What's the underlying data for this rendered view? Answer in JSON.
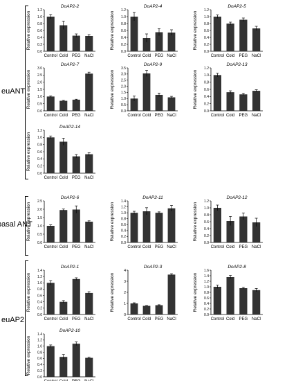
{
  "groups": [
    {
      "label": "euANT"
    },
    {
      "label": "basal ANT"
    },
    {
      "label": "euAP2"
    }
  ],
  "chart_data": [
    {
      "type": "bar",
      "title": "DoAP2-2",
      "ylabel": "Relative expression",
      "categories": [
        "Control",
        "Cold",
        "PEG",
        "NaCl"
      ],
      "values": [
        1.0,
        0.75,
        0.45,
        0.44
      ],
      "errors": [
        0.06,
        0.12,
        0.05,
        0.04
      ],
      "ylim": [
        0,
        1.2
      ],
      "yticks": [
        "0.0",
        "0.2",
        "0.4",
        "0.6",
        "0.8",
        "1.0",
        "1.2"
      ]
    },
    {
      "type": "bar",
      "title": "DoAP2-4",
      "ylabel": "Relative expression",
      "categories": [
        "Control",
        "Cold",
        "PEG",
        "NaCl"
      ],
      "values": [
        1.0,
        0.38,
        0.55,
        0.54
      ],
      "errors": [
        0.12,
        0.12,
        0.1,
        0.08
      ],
      "ylim": [
        0,
        1.2
      ],
      "yticks": [
        "0.0",
        "0.2",
        "0.4",
        "0.6",
        "0.8",
        "1.0",
        "1.2"
      ]
    },
    {
      "type": "bar",
      "title": "DoAP2-5",
      "ylabel": "Relative expression",
      "categories": [
        "Control",
        "Cold",
        "PEG",
        "NaCl"
      ],
      "values": [
        1.0,
        0.8,
        0.91,
        0.66
      ],
      "errors": [
        0.05,
        0.04,
        0.05,
        0.06
      ],
      "ylim": [
        0,
        1.2
      ],
      "yticks": [
        "0.0",
        "0.2",
        "0.4",
        "0.6",
        "0.8",
        "1.0",
        "1.2"
      ]
    },
    {
      "type": "bar",
      "title": "DoAP2-7",
      "ylabel": "Relative expression",
      "categories": [
        "Control",
        "Cold",
        "PEG",
        "NaCl"
      ],
      "values": [
        1.0,
        0.7,
        0.78,
        2.6
      ],
      "errors": [
        0.04,
        0.03,
        0.03,
        0.1
      ],
      "ylim": [
        0,
        3.0
      ],
      "yticks": [
        "0.0",
        "0.5",
        "1.0",
        "1.5",
        "2.0",
        "2.5",
        "3.0"
      ]
    },
    {
      "type": "bar",
      "title": "DoAP2-9",
      "ylabel": "Relative expression",
      "categories": [
        "Control",
        "Cold",
        "PEG",
        "NaCl"
      ],
      "values": [
        1.0,
        3.05,
        1.3,
        1.1
      ],
      "errors": [
        0.2,
        0.25,
        0.15,
        0.08
      ],
      "ylim": [
        0,
        3.5
      ],
      "yticks": [
        "0.0",
        "0.5",
        "1.0",
        "1.5",
        "2.0",
        "2.5",
        "3.0",
        "3.5"
      ]
    },
    {
      "type": "bar",
      "title": "DoAP2-13",
      "ylabel": "Relative expression",
      "categories": [
        "Control",
        "Cold",
        "PEG",
        "NaCl"
      ],
      "values": [
        1.0,
        0.52,
        0.46,
        0.56
      ],
      "errors": [
        0.05,
        0.04,
        0.03,
        0.03
      ],
      "ylim": [
        0,
        1.2
      ],
      "yticks": [
        "0.0",
        "0.2",
        "0.4",
        "0.6",
        "0.8",
        "1.0",
        "1.2"
      ]
    },
    {
      "type": "bar",
      "title": "DoAP2-14",
      "ylabel": "Relative expression",
      "categories": [
        "Control",
        "Cold",
        "PEG",
        "NaCl"
      ],
      "values": [
        1.0,
        0.88,
        0.47,
        0.53
      ],
      "errors": [
        0.04,
        0.1,
        0.05,
        0.04
      ],
      "ylim": [
        0,
        1.2
      ],
      "yticks": [
        "0.0",
        "0.2",
        "0.4",
        "0.6",
        "0.8",
        "1.0",
        "1.2"
      ]
    },
    {
      "type": "bar",
      "title": "DoAP2-6",
      "ylabel": "Relative expression",
      "categories": [
        "Control",
        "Cold",
        "PEG",
        "NaCl"
      ],
      "values": [
        1.0,
        1.95,
        1.98,
        1.25
      ],
      "errors": [
        0.06,
        0.06,
        0.22,
        0.05
      ],
      "ylim": [
        0,
        2.5
      ],
      "yticks": [
        "0.0",
        "0.5",
        "1.0",
        "1.5",
        "2.0",
        "2.5"
      ]
    },
    {
      "type": "bar",
      "title": "DoAP2-11",
      "ylabel": "Relative expression",
      "categories": [
        "Control",
        "Cold",
        "PEG",
        "NaCl"
      ],
      "values": [
        1.0,
        1.05,
        1.0,
        1.15
      ],
      "errors": [
        0.05,
        0.12,
        0.03,
        0.1
      ],
      "ylim": [
        0,
        1.4
      ],
      "yticks": [
        "0.0",
        "0.2",
        "0.4",
        "0.6",
        "0.8",
        "1.0",
        "1.2",
        "1.4"
      ]
    },
    {
      "type": "bar",
      "title": "DoAP2-12",
      "ylabel": "Relative expression",
      "categories": [
        "Control",
        "Cold",
        "PEG",
        "NaCl"
      ],
      "values": [
        1.0,
        0.62,
        0.75,
        0.58
      ],
      "errors": [
        0.08,
        0.13,
        0.1,
        0.12
      ],
      "ylim": [
        0,
        1.2
      ],
      "yticks": [
        "0.0",
        "0.2",
        "0.4",
        "0.6",
        "0.8",
        "1.0",
        "1.2"
      ]
    },
    {
      "type": "bar",
      "title": "DoAP2-1",
      "ylabel": "Relative expression",
      "categories": [
        "Control",
        "Cold",
        "PEG",
        "NaCl"
      ],
      "values": [
        1.0,
        0.4,
        1.12,
        0.68
      ],
      "errors": [
        0.07,
        0.04,
        0.04,
        0.04
      ],
      "ylim": [
        0,
        1.4
      ],
      "yticks": [
        "0.0",
        "0.2",
        "0.4",
        "0.6",
        "0.8",
        "1.0",
        "1.2",
        "1.4"
      ]
    },
    {
      "type": "bar",
      "title": "DoAP2-3",
      "ylabel": "Relative expression",
      "categories": [
        "Control",
        "Cold",
        "PEG",
        "NaCl"
      ],
      "values": [
        1.0,
        0.78,
        0.84,
        3.6
      ],
      "errors": [
        0.06,
        0.03,
        0.04,
        0.08
      ],
      "ylim": [
        0,
        4
      ],
      "yticks": [
        "0",
        "1",
        "2",
        "3",
        "4"
      ]
    },
    {
      "type": "bar",
      "title": "DoAP2-8",
      "ylabel": "Relative expression",
      "categories": [
        "Control",
        "Cold",
        "PEG",
        "NaCl"
      ],
      "values": [
        1.0,
        1.35,
        0.95,
        0.88
      ],
      "errors": [
        0.06,
        0.06,
        0.03,
        0.06
      ],
      "ylim": [
        0,
        1.6
      ],
      "yticks": [
        "0.0",
        "0.2",
        "0.4",
        "0.6",
        "0.8",
        "1.0",
        "1.2",
        "1.4",
        "1.6"
      ]
    },
    {
      "type": "bar",
      "title": "DoAP2-10",
      "ylabel": "Relative expression",
      "categories": [
        "Control",
        "Cold",
        "PEG",
        "NaCl"
      ],
      "values": [
        1.0,
        0.65,
        1.08,
        0.62
      ],
      "errors": [
        0.04,
        0.08,
        0.06,
        0.02
      ],
      "ylim": [
        0,
        1.4
      ],
      "yticks": [
        "0.0",
        "0.2",
        "0.4",
        "0.6",
        "0.8",
        "1.0",
        "1.2",
        "1.4"
      ]
    }
  ]
}
